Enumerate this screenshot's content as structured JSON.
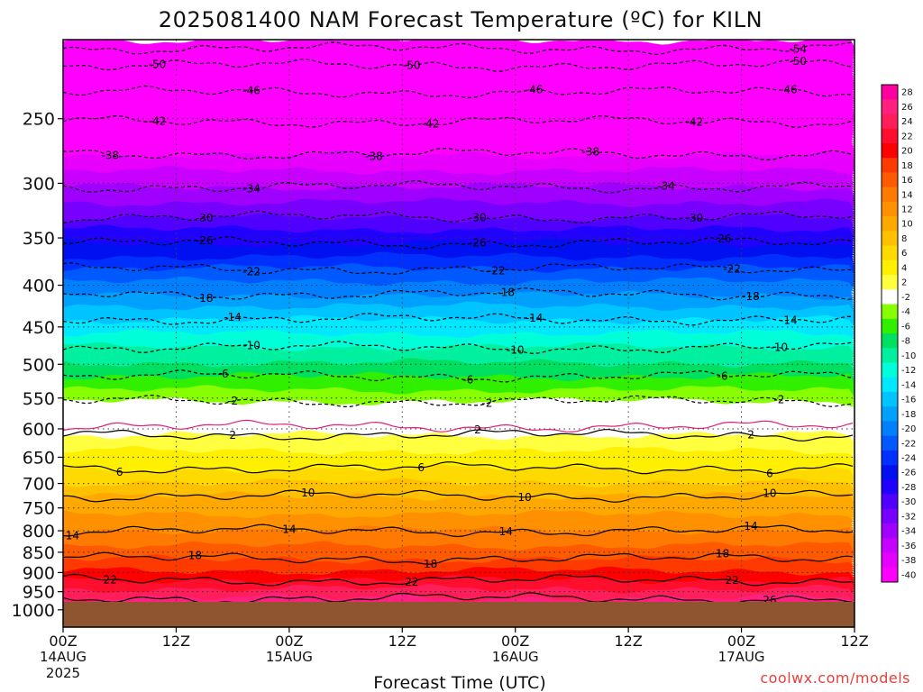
{
  "chart_data": {
    "type": "heatmap",
    "title": "2025081400 NAM Forecast Temperature (ºC) for KILN",
    "xlabel": "Forecast Time (UTC)",
    "ylabel": "",
    "x_ticks": [
      {
        "label": "00Z",
        "sub": "14AUG",
        "sub2": "2025",
        "hour": 0
      },
      {
        "label": "12Z",
        "sub": "",
        "sub2": "",
        "hour": 12
      },
      {
        "label": "00Z",
        "sub": "15AUG",
        "sub2": "",
        "hour": 24
      },
      {
        "label": "12Z",
        "sub": "",
        "sub2": "",
        "hour": 36
      },
      {
        "label": "00Z",
        "sub": "16AUG",
        "sub2": "",
        "hour": 48
      },
      {
        "label": "12Z",
        "sub": "",
        "sub2": "",
        "hour": 60
      },
      {
        "label": "00Z",
        "sub": "17AUG",
        "sub2": "",
        "hour": 72
      },
      {
        "label": "12Z",
        "sub": "",
        "sub2": "",
        "hour": 84
      }
    ],
    "x_range_hours": [
      0,
      84
    ],
    "y_axis_pressure_hPa": [
      250,
      300,
      350,
      400,
      450,
      500,
      550,
      600,
      650,
      700,
      750,
      800,
      850,
      900,
      950,
      1000
    ],
    "y_range_hPa": [
      200,
      1050
    ],
    "y_scale": "log-pressure, inverted",
    "colorbar_levels": [
      28,
      26,
      24,
      22,
      20,
      18,
      16,
      14,
      12,
      10,
      8,
      6,
      4,
      2,
      -2,
      -4,
      -6,
      -8,
      -10,
      -12,
      -14,
      -16,
      -18,
      -20,
      -22,
      -24,
      -26,
      -28,
      -30,
      -32,
      -34,
      -36,
      -38,
      -40
    ],
    "colorbar_colors": [
      "#ff00a0",
      "#ff2080",
      "#ff1e5a",
      "#ff0f2d",
      "#ff0000",
      "#ff3a00",
      "#ff5a00",
      "#ff7a00",
      "#ff9000",
      "#ffa800",
      "#ffc000",
      "#ffda00",
      "#fff000",
      "#ffff40",
      "#ffffff",
      "#88ff00",
      "#30f000",
      "#00e060",
      "#00f0a0",
      "#00ffd8",
      "#00e8ff",
      "#00c4ff",
      "#00a0ff",
      "#0080ff",
      "#0058ff",
      "#0030ff",
      "#0010f0",
      "#2000ff",
      "#5000ff",
      "#7800ff",
      "#a000ff",
      "#c800ff",
      "#e800ff",
      "#ff00ff"
    ],
    "ground_color": "#8f5530",
    "contour_isotherms_hPa": [
      {
        "t": -54,
        "p": 205,
        "style": "dashed"
      },
      {
        "t": -50,
        "p": 215,
        "style": "dashed"
      },
      {
        "t": -46,
        "p": 232,
        "style": "dashed"
      },
      {
        "t": -42,
        "p": 252,
        "style": "dashed"
      },
      {
        "t": -38,
        "p": 276,
        "style": "dashed"
      },
      {
        "t": -34,
        "p": 303,
        "style": "dashed"
      },
      {
        "t": -30,
        "p": 330,
        "style": "dashed"
      },
      {
        "t": -26,
        "p": 355,
        "style": "dashed"
      },
      {
        "t": -22,
        "p": 382,
        "style": "dashed"
      },
      {
        "t": -18,
        "p": 410,
        "style": "dashed"
      },
      {
        "t": -14,
        "p": 440,
        "style": "dashed"
      },
      {
        "t": -10,
        "p": 477,
        "style": "dashed"
      },
      {
        "t": -6,
        "p": 517,
        "style": "dashed"
      },
      {
        "t": -2,
        "p": 555,
        "style": "dashed"
      },
      {
        "t": 2,
        "p": 610,
        "style": "solid"
      },
      {
        "t": 6,
        "p": 670,
        "style": "solid"
      },
      {
        "t": 10,
        "p": 725,
        "style": "solid"
      },
      {
        "t": 14,
        "p": 800,
        "style": "solid"
      },
      {
        "t": 18,
        "p": 865,
        "style": "solid"
      },
      {
        "t": 22,
        "p": 920,
        "style": "solid"
      },
      {
        "t": 26,
        "p": 968,
        "style": "solid"
      }
    ],
    "label_rows": [
      {
        "t": -54,
        "hours": [
          78
        ]
      },
      {
        "t": -50,
        "hours": [
          10,
          37,
          78
        ]
      },
      {
        "t": -46,
        "hours": [
          20,
          50,
          77
        ]
      },
      {
        "t": -42,
        "hours": [
          10,
          39,
          67
        ]
      },
      {
        "t": -38,
        "hours": [
          5,
          33,
          56
        ]
      },
      {
        "t": -34,
        "hours": [
          20,
          64
        ]
      },
      {
        "t": -30,
        "hours": [
          15,
          44,
          67
        ]
      },
      {
        "t": -26,
        "hours": [
          15,
          44,
          70
        ]
      },
      {
        "t": -22,
        "hours": [
          20,
          46,
          71
        ]
      },
      {
        "t": -18,
        "hours": [
          15,
          47,
          73
        ]
      },
      {
        "t": -14,
        "hours": [
          18,
          50,
          77
        ]
      },
      {
        "t": -10,
        "hours": [
          20,
          48,
          76
        ]
      },
      {
        "t": -6,
        "hours": [
          17,
          43,
          70
        ]
      },
      {
        "t": -2,
        "hours": [
          18,
          45,
          76
        ]
      },
      {
        "t": 2,
        "hours": [
          18,
          44,
          73
        ]
      },
      {
        "t": 6,
        "hours": [
          6,
          38,
          75
        ]
      },
      {
        "t": 10,
        "hours": [
          26,
          49,
          75
        ]
      },
      {
        "t": 14,
        "hours": [
          1,
          24,
          47,
          73
        ]
      },
      {
        "t": 18,
        "hours": [
          14,
          39,
          70
        ]
      },
      {
        "t": 22,
        "hours": [
          5,
          37,
          71
        ]
      },
      {
        "t": 26,
        "hours": [
          75
        ]
      }
    ]
  },
  "credit": "coolwx.com/models"
}
